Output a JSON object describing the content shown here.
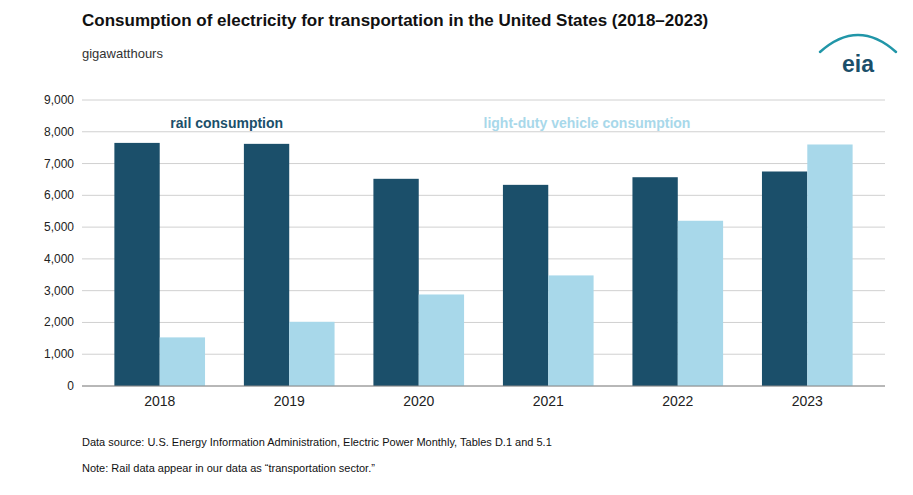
{
  "chart_data": {
    "type": "bar",
    "title": "Consumption of electricity for transportation in the United States (2018–2023)",
    "subtitle": "gigawatthours",
    "categories": [
      "2018",
      "2019",
      "2020",
      "2021",
      "2022",
      "2023"
    ],
    "series": [
      {
        "name": "rail consumption",
        "color": "#1b4f6a",
        "values": [
          7650,
          7620,
          6520,
          6330,
          6570,
          6750
        ]
      },
      {
        "name": "light-duty vehicle consumption",
        "color": "#a8d8ea",
        "values": [
          1530,
          2020,
          2880,
          3480,
          5200,
          7600
        ]
      }
    ],
    "ylim": [
      0,
      9000
    ],
    "yticks": [
      0,
      {
        "value": 1000,
        "label": "1,000"
      },
      {
        "value": 2000,
        "label": "2,000"
      },
      {
        "value": 3000,
        "label": "3,000"
      },
      {
        "value": 4000,
        "label": "4,000"
      },
      {
        "value": 5000,
        "label": "5,000"
      },
      {
        "value": 6000,
        "label": "6,000"
      },
      {
        "value": 7000,
        "label": "7,000"
      },
      {
        "value": 8000,
        "label": "8,000"
      },
      {
        "value": 9000,
        "label": "9,000"
      }
    ],
    "grid": true,
    "legend": "upper left",
    "annotations": [
      "Data source: U.S. Energy Information Administration, Electric Power Monthly, Tables D.1 and 5.1",
      "Note: Rail data appear in our data as “transportation sector.”",
      "eia"
    ]
  }
}
